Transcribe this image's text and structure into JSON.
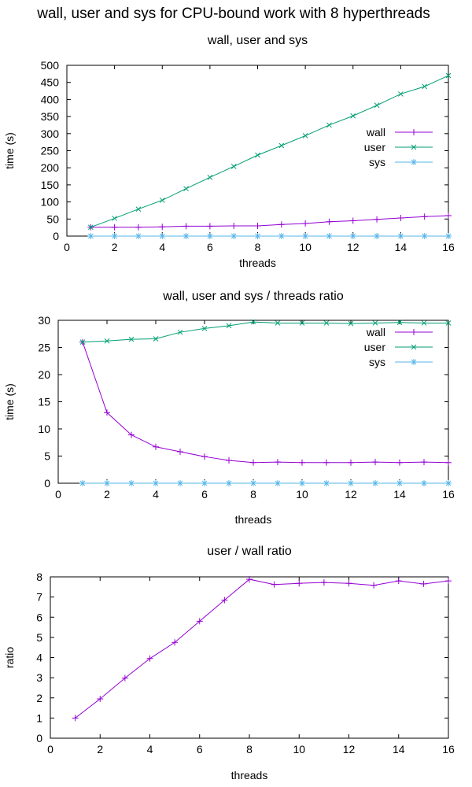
{
  "suptitle": "wall, user and sys for CPU-bound work with 8 hyperthreads",
  "colors": {
    "wall": "#9400d3",
    "user": "#009e73",
    "sys": "#56b4e9"
  },
  "chart_data": [
    {
      "type": "line",
      "title": "wall, user and sys",
      "xlabel": "threads",
      "ylabel": "time (s)",
      "xlim": [
        0,
        16
      ],
      "ylim": [
        0,
        500
      ],
      "xticks": [
        "0",
        "2",
        "4",
        "6",
        "8",
        "10",
        "12",
        "14",
        "16"
      ],
      "yticks": [
        "0",
        "50",
        "100",
        "150",
        "200",
        "250",
        "300",
        "350",
        "400",
        "450",
        "500"
      ],
      "legend_position": "right-middle",
      "x": [
        1,
        2,
        3,
        4,
        5,
        6,
        7,
        8,
        9,
        10,
        11,
        12,
        13,
        14,
        15,
        16
      ],
      "series": [
        {
          "name": "wall",
          "marker": "plus",
          "values": [
            26,
            26,
            26,
            27,
            29,
            29,
            30,
            30,
            34,
            37,
            42,
            45,
            49,
            53,
            57,
            60
          ]
        },
        {
          "name": "user",
          "marker": "cross",
          "values": [
            26,
            52,
            79,
            105,
            139,
            172,
            204,
            237,
            265,
            294,
            325,
            352,
            383,
            416,
            438,
            470
          ]
        },
        {
          "name": "sys",
          "marker": "star",
          "values": [
            0,
            0,
            0,
            0,
            0,
            0,
            0,
            0,
            0,
            0,
            0,
            0,
            0,
            0,
            0,
            0
          ]
        }
      ]
    },
    {
      "type": "line",
      "title": "wall, user and sys / threads ratio",
      "xlabel": "threads",
      "ylabel": "time (s)",
      "xlim": [
        0,
        16
      ],
      "ylim": [
        0,
        30
      ],
      "xticks": [
        "0",
        "2",
        "4",
        "6",
        "8",
        "10",
        "12",
        "14",
        "16"
      ],
      "yticks": [
        "0",
        "5",
        "10",
        "15",
        "20",
        "25",
        "30"
      ],
      "legend_position": "top-right",
      "x": [
        1,
        2,
        3,
        4,
        5,
        6,
        7,
        8,
        9,
        10,
        11,
        12,
        13,
        14,
        15,
        16
      ],
      "series": [
        {
          "name": "wall",
          "marker": "plus",
          "values": [
            26,
            13,
            8.9,
            6.7,
            5.8,
            4.9,
            4.2,
            3.8,
            3.9,
            3.8,
            3.8,
            3.8,
            3.9,
            3.8,
            3.9,
            3.8
          ]
        },
        {
          "name": "user",
          "marker": "cross",
          "values": [
            26,
            26.2,
            26.5,
            26.6,
            27.8,
            28.5,
            29.0,
            29.7,
            29.5,
            29.5,
            29.5,
            29.4,
            29.5,
            29.6,
            29.5,
            29.5
          ]
        },
        {
          "name": "sys",
          "marker": "star",
          "values": [
            0,
            0,
            0,
            0,
            0,
            0,
            0,
            0,
            0,
            0,
            0,
            0,
            0,
            0,
            0,
            0
          ]
        }
      ]
    },
    {
      "type": "line",
      "title": "user / wall ratio",
      "xlabel": "threads",
      "ylabel": "ratio",
      "xlim": [
        0,
        16
      ],
      "ylim": [
        0,
        8
      ],
      "xticks": [
        "0",
        "2",
        "4",
        "6",
        "8",
        "10",
        "12",
        "14",
        "16"
      ],
      "yticks": [
        "0",
        "1",
        "2",
        "3",
        "4",
        "5",
        "6",
        "7",
        "8"
      ],
      "legend_position": "none",
      "x": [
        1,
        2,
        3,
        4,
        5,
        6,
        7,
        8,
        9,
        10,
        11,
        12,
        13,
        14,
        15,
        16
      ],
      "series": [
        {
          "name": "user/wall",
          "marker": "plus",
          "values": [
            1,
            1.95,
            2.98,
            3.95,
            4.75,
            5.8,
            6.85,
            7.88,
            7.62,
            7.68,
            7.72,
            7.68,
            7.58,
            7.8,
            7.65,
            7.8
          ]
        }
      ]
    }
  ]
}
